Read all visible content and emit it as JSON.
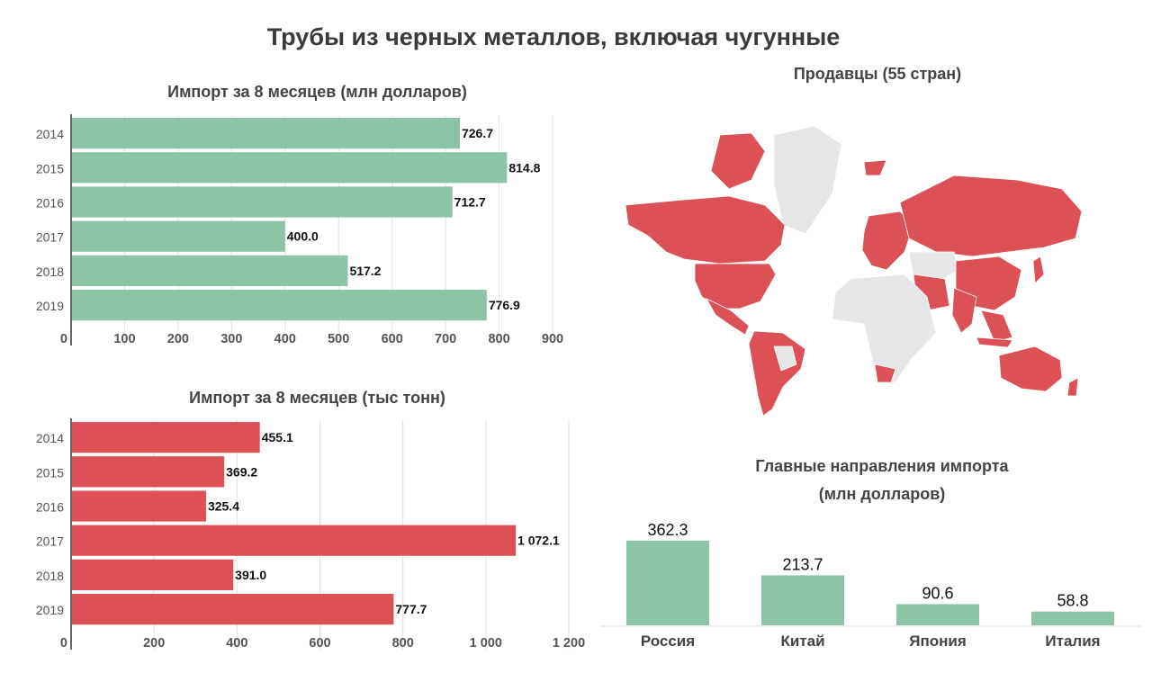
{
  "title": "Трубы из черных металлов, включая чугунные",
  "colors": {
    "green": "#8dc3a7",
    "red": "#dc5155",
    "land": "#e6e6e6",
    "grid": "#e2e2e2"
  },
  "chart_data": [
    {
      "type": "bar",
      "orientation": "horizontal",
      "title": "Импорт за 8 месяцев (млн долларов)",
      "categories": [
        "2014",
        "2015",
        "2016",
        "2017",
        "2018",
        "2019"
      ],
      "values": [
        726.7,
        814.8,
        712.7,
        400.0,
        517.2,
        776.9
      ],
      "value_labels": [
        "726.7",
        "814.8",
        "712.7",
        "400.0",
        "517.2",
        "776.9"
      ],
      "xlim": [
        0,
        900
      ],
      "xticks": [
        0,
        100,
        200,
        300,
        400,
        500,
        600,
        700,
        800,
        900
      ],
      "xtick_labels": [
        "0",
        "100",
        "200",
        "300",
        "400",
        "500",
        "600",
        "700",
        "800",
        "900"
      ],
      "grid": true,
      "color": "#8dc3a7"
    },
    {
      "type": "bar",
      "orientation": "horizontal",
      "title": "Импорт за 8 месяцев (тыс тонн)",
      "categories": [
        "2014",
        "2015",
        "2016",
        "2017",
        "2018",
        "2019"
      ],
      "values": [
        455.1,
        369.2,
        325.4,
        1072.1,
        391.0,
        777.7
      ],
      "value_labels": [
        "455.1",
        "369.2",
        "325.4",
        "1 072.1",
        "391.0",
        "777.7"
      ],
      "xlim": [
        0,
        1200
      ],
      "xticks": [
        0,
        200,
        400,
        600,
        800,
        1000,
        1200
      ],
      "xtick_labels": [
        "0",
        "200",
        "400",
        "600",
        "800",
        "1 000",
        "1 200"
      ],
      "grid": true,
      "color": "#dc5155"
    },
    {
      "type": "map",
      "title": "Продавцы (55 стран)",
      "highlight_color": "#dc5155",
      "base_color": "#e6e6e6"
    },
    {
      "type": "bar",
      "orientation": "vertical",
      "title": "Главные направления импорта\n(млн долларов)",
      "categories": [
        "Россия",
        "Китай",
        "Япония",
        "Италия"
      ],
      "values": [
        362.3,
        213.7,
        90.6,
        58.8
      ],
      "value_labels": [
        "362.3",
        "213.7",
        "90.6",
        "58.8"
      ],
      "color": "#8dc3a7"
    }
  ]
}
